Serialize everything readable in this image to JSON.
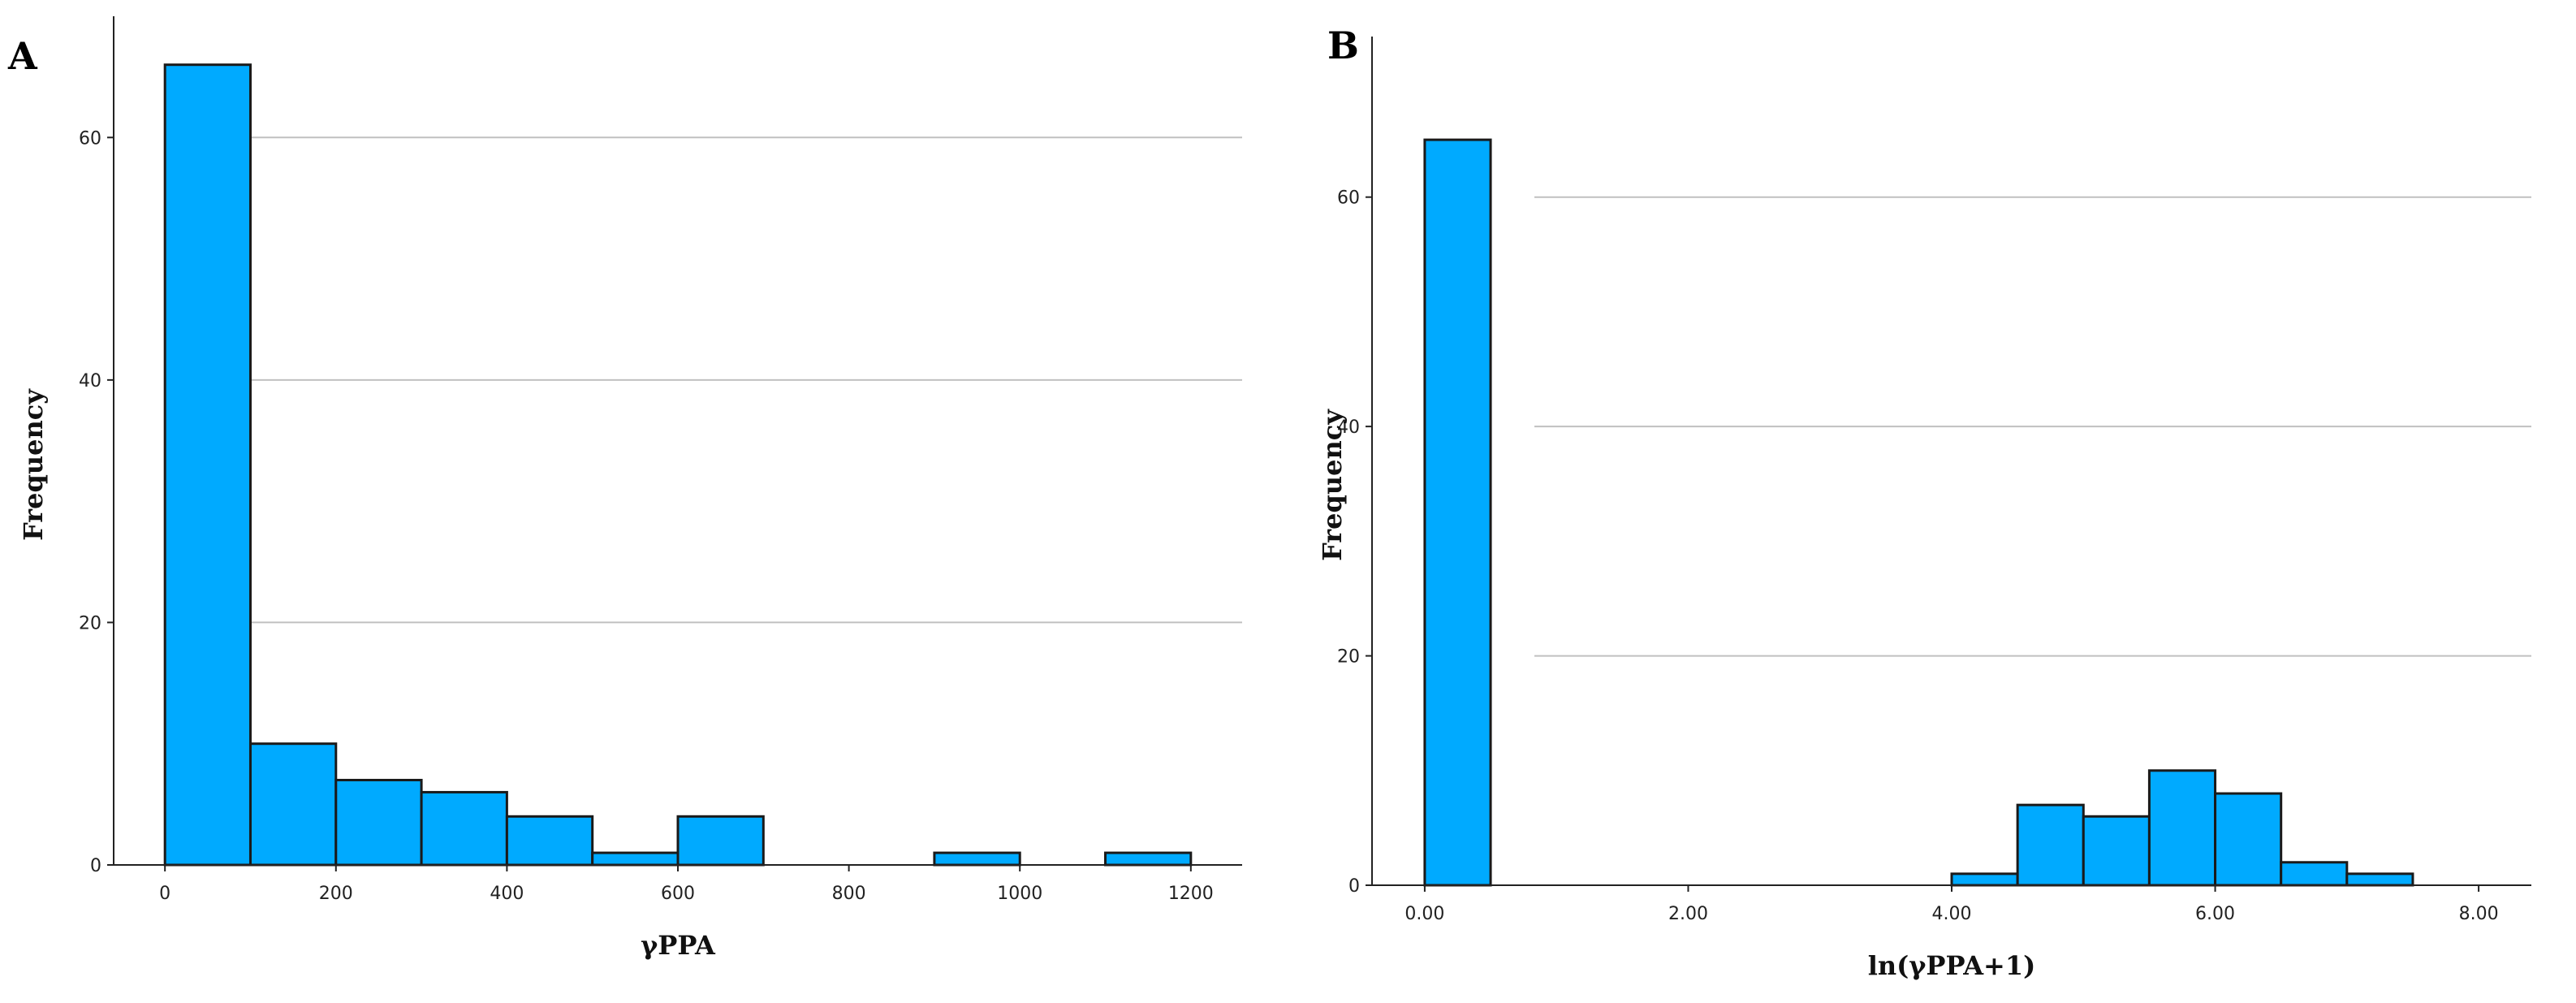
{
  "chart_data": [
    {
      "type": "bar",
      "panel_label": "A",
      "xlabel": "γPPA",
      "ylabel": "Frequency",
      "xlim": [
        -60,
        1260
      ],
      "ylim": [
        0,
        70
      ],
      "yticks": [
        0,
        20,
        40,
        60
      ],
      "xticks": [
        0,
        200,
        400,
        600,
        800,
        1000,
        1200
      ],
      "xtick_labels": [
        "0",
        "200",
        "400",
        "600",
        "800",
        "1000",
        "1200"
      ],
      "grid": "horizontal",
      "bin_width": 100,
      "bins": [
        {
          "start": 0,
          "count": 66
        },
        {
          "start": 100,
          "count": 10
        },
        {
          "start": 200,
          "count": 7
        },
        {
          "start": 300,
          "count": 6
        },
        {
          "start": 400,
          "count": 4
        },
        {
          "start": 500,
          "count": 1
        },
        {
          "start": 600,
          "count": 4
        },
        {
          "start": 900,
          "count": 1
        },
        {
          "start": 1100,
          "count": 1
        }
      ],
      "colors": {
        "bar": "#00aaff",
        "edge": "#1a1a1a",
        "grid": "#c0c0c0"
      }
    },
    {
      "type": "bar",
      "panel_label": "B",
      "xlabel": "ln(γPPA+1)",
      "ylabel": "Frequency",
      "xlim": [
        -0.4,
        8.4
      ],
      "ylim": [
        0,
        74
      ],
      "yticks": [
        0,
        20,
        40,
        60
      ],
      "xticks": [
        0,
        2,
        4,
        6,
        8
      ],
      "xtick_labels": [
        "0.00",
        "2.00",
        "4.00",
        "6.00",
        "8.00"
      ],
      "grid": "horizontal",
      "bin_width": 0.5,
      "bins": [
        {
          "start": 0.0,
          "count": 65
        },
        {
          "start": 4.0,
          "count": 1
        },
        {
          "start": 4.5,
          "count": 7
        },
        {
          "start": 5.0,
          "count": 6
        },
        {
          "start": 5.5,
          "count": 10
        },
        {
          "start": 6.0,
          "count": 8
        },
        {
          "start": 6.5,
          "count": 2
        },
        {
          "start": 7.0,
          "count": 1
        }
      ],
      "colors": {
        "bar": "#00aaff",
        "edge": "#1a1a1a",
        "grid": "#c0c0c0"
      }
    }
  ]
}
